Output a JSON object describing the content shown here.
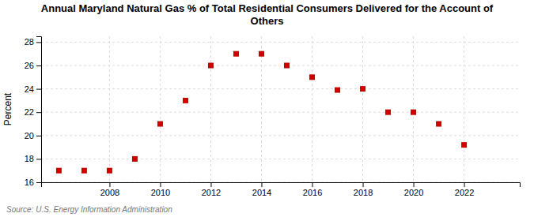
{
  "chart_data": {
    "type": "scatter",
    "title": "Annual Maryland Natural Gas % of Total Residential Consumers Delivered for the Account of\nOthers",
    "ylabel": "Percent",
    "annotations": [
      "Source: U.S. Energy Information Administration"
    ],
    "x": [
      2006,
      2007,
      2008,
      2009,
      2010,
      2011,
      2012,
      2013,
      2014,
      2015,
      2016,
      2017,
      2018,
      2019,
      2020,
      2021,
      2022,
      2023
    ],
    "values": [
      17.0,
      17.0,
      17.0,
      18.0,
      21.0,
      23.0,
      26.0,
      27.0,
      27.0,
      26.0,
      25.0,
      23.9,
      24.0,
      22.0,
      22.0,
      21.0,
      19.2,
      null
    ],
    "color": "#cc0000",
    "marker": "square",
    "xlim": [
      2005.3,
      2024.2
    ],
    "xticks": [
      2008,
      2010,
      2012,
      2014,
      2016,
      2018,
      2020,
      2022
    ],
    "ylim": [
      16,
      28.5
    ],
    "yticks": [
      16,
      18,
      20,
      22,
      24,
      26,
      28
    ],
    "grid": true
  }
}
